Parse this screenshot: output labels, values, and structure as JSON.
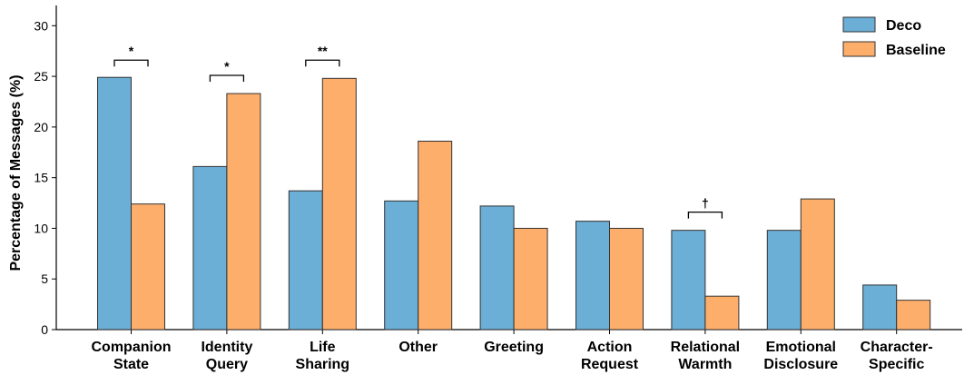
{
  "chart_data": {
    "type": "bar",
    "categories": [
      [
        "Companion",
        "State"
      ],
      [
        "Identity",
        "Query"
      ],
      [
        "Life",
        "Sharing"
      ],
      [
        "Other"
      ],
      [
        "Greeting"
      ],
      [
        "Action",
        "Request"
      ],
      [
        "Relational",
        "Warmth"
      ],
      [
        "Emotional",
        "Disclosure"
      ],
      [
        "Character-",
        "Specific"
      ]
    ],
    "series": [
      {
        "name": "Deco",
        "color": "#6baed6",
        "values": [
          24.9,
          16.1,
          13.7,
          12.7,
          12.2,
          10.7,
          9.8,
          9.8,
          4.4
        ]
      },
      {
        "name": "Baseline",
        "color": "#fdae6b",
        "values": [
          12.4,
          23.3,
          24.8,
          18.6,
          10.0,
          10.0,
          3.3,
          12.9,
          2.9
        ]
      }
    ],
    "ylabel": "Percentage of Messages (%)",
    "ylim": [
      0,
      32
    ],
    "yticks": [
      0,
      5,
      10,
      15,
      20,
      25,
      30
    ],
    "legend": "top-right",
    "grid": false,
    "significance": [
      {
        "category_index": 0,
        "label": "*",
        "y": 26.6
      },
      {
        "category_index": 1,
        "label": "*",
        "y": 25.1
      },
      {
        "category_index": 2,
        "label": "**",
        "y": 26.6
      },
      {
        "category_index": 6,
        "label": "†",
        "y": 11.6
      }
    ]
  }
}
